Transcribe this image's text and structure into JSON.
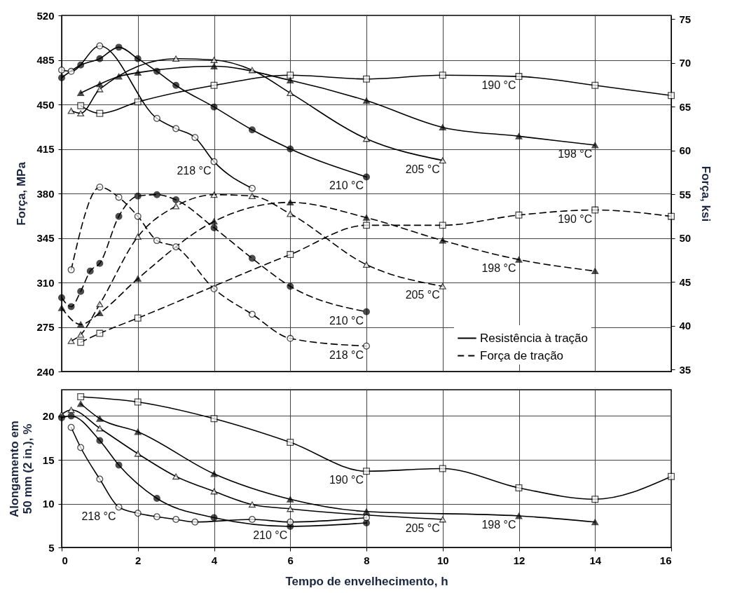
{
  "chart_data": [
    {
      "type": "line",
      "ylabel": "Força, MPa",
      "y2label": "Força, ksi",
      "xlim": [
        0,
        16
      ],
      "xticks": [
        0,
        2,
        4,
        6,
        8,
        10,
        12,
        14,
        16
      ],
      "ylim": [
        240,
        520
      ],
      "yticks": [
        240,
        275,
        310,
        345,
        380,
        415,
        450,
        485,
        520
      ],
      "y2lim": [
        34.8,
        75.4
      ],
      "y2ticks": [
        35,
        40,
        45,
        50,
        55,
        60,
        65,
        70,
        75
      ],
      "grid": true,
      "legend": "bottom right",
      "tick_labels": "y",
      "series": [
        {
          "name": "Resistência à tração",
          "line_style": "solid",
          "marker": "square",
          "color": "#000000",
          "x": [
            0.5,
            1,
            2,
            4,
            6,
            8,
            10,
            12,
            14,
            16
          ],
          "values": [
            449,
            443,
            452,
            465,
            473,
            470,
            473,
            472,
            465,
            457
          ],
          "colors": [
            "#ffffff",
            "#ffffff",
            "#ffffff",
            "#ffffff",
            "#ffffff",
            "#ffffff",
            "#ffffff",
            "#ffffff",
            "#ffffff",
            "#ffffff"
          ]
        },
        {
          "line_style": "solid",
          "marker": "triangle",
          "color": "#000000",
          "x": [
            0.5,
            1,
            1.5,
            2,
            4,
            6,
            8,
            10,
            12,
            14
          ],
          "values": [
            459,
            466,
            472,
            475,
            480,
            469,
            453,
            432,
            425,
            418
          ]
        },
        {
          "line_style": "solid",
          "marker": "triangle",
          "color": "#000000",
          "x": [
            0.25,
            0.5,
            1,
            3,
            4,
            5,
            6,
            8,
            10
          ],
          "values": [
            445,
            443,
            462,
            486,
            485,
            477,
            459,
            423,
            406
          ],
          "colors": [
            "#ffffff",
            "#ffffff",
            "#ffffff",
            "#ffffff",
            "#ffffff",
            "#ffffff",
            "#ffffff",
            "#ffffff",
            "#ffffff"
          ]
        },
        {
          "line_style": "solid",
          "marker": "circle",
          "color": "#000000",
          "x": [
            0,
            0.5,
            1,
            1.5,
            2,
            2.5,
            3,
            4,
            5,
            6,
            8
          ],
          "values": [
            471,
            481,
            486,
            495,
            486,
            476,
            465,
            448,
            430,
            415,
            393
          ]
        },
        {
          "line_style": "solid",
          "marker": "circle",
          "color": "#000000",
          "x": [
            0,
            0.25,
            1,
            2.5,
            3,
            3.5,
            4,
            5
          ],
          "values": [
            477,
            476,
            496,
            439,
            431,
            424,
            405,
            384
          ],
          "colors": [
            "#ffffff",
            "#ffffff",
            "#ffffff",
            "#ffffff",
            "#ffffff",
            "#ffffff",
            "#ffffff",
            "#ffffff"
          ]
        },
        {
          "name": "Força de tração",
          "line_style": "dashed",
          "marker": "square",
          "color": "#000000",
          "x": [
            0.5,
            1,
            2,
            6,
            8,
            10,
            12,
            14,
            16
          ],
          "values": [
            263,
            270,
            282,
            332,
            355,
            355,
            363,
            367,
            362
          ],
          "colors": [
            "#ffffff",
            "#ffffff",
            "#ffffff",
            "#ffffff",
            "#ffffff",
            "#ffffff",
            "#ffffff",
            "#ffffff",
            "#ffffff"
          ]
        },
        {
          "line_style": "dashed",
          "marker": "triangle",
          "color": "#000000",
          "x": [
            0,
            0.5,
            1,
            2,
            4,
            6,
            8,
            10,
            12,
            14
          ],
          "values": [
            290,
            277,
            286,
            313,
            358,
            373,
            361,
            343,
            328,
            319
          ]
        },
        {
          "line_style": "dashed",
          "marker": "triangle",
          "color": "#000000",
          "x": [
            0.25,
            0.5,
            1,
            2,
            3,
            4,
            5,
            6,
            8,
            10
          ],
          "values": [
            264,
            269,
            293,
            346,
            370,
            379,
            378,
            364,
            324,
            307
          ],
          "colors": [
            "#ffffff",
            "#ffffff",
            "#ffffff",
            "#ffffff",
            "#ffffff",
            "#ffffff",
            "#ffffff",
            "#ffffff",
            "#ffffff",
            "#ffffff"
          ]
        },
        {
          "line_style": "dashed",
          "marker": "circle",
          "color": "#000000",
          "x": [
            0,
            0.25,
            0.5,
            0.75,
            1,
            1.5,
            2,
            2.5,
            3,
            4,
            5,
            6,
            8
          ],
          "values": [
            298,
            291,
            303,
            319,
            325,
            362,
            378,
            379,
            375,
            353,
            329,
            307,
            287
          ]
        },
        {
          "line_style": "dashed",
          "marker": "circle",
          "color": "#000000",
          "x": [
            0.25,
            1,
            1.5,
            2,
            2.5,
            3,
            4,
            5,
            6,
            8
          ],
          "values": [
            320,
            385,
            377,
            362,
            343,
            338,
            305,
            285,
            266,
            260
          ],
          "colors": [
            "#ffffff",
            "#ffffff",
            "#ffffff",
            "#ffffff",
            "#ffffff",
            "#ffffff",
            "#ffffff",
            "#ffffff",
            "#ffffff",
            "#ffffff"
          ]
        }
      ],
      "annotations": [
        {
          "text": "190 °C",
          "x": 12,
          "y": 472
        },
        {
          "text": "198 °C",
          "x": 14,
          "y": 418
        },
        {
          "text": "205 °C",
          "x": 10,
          "y": 406
        },
        {
          "text": "210 °C",
          "x": 8,
          "y": 393
        },
        {
          "text": "218 °C",
          "x": 4,
          "y": 405
        },
        {
          "text": "190 °C",
          "x": 14,
          "y": 367
        },
        {
          "text": "198 °C",
          "x": 12,
          "y": 328
        },
        {
          "text": "205 °C",
          "x": 10,
          "y": 307
        },
        {
          "text": "210 °C",
          "x": 8,
          "y": 287
        },
        {
          "text": "218 °C",
          "x": 8,
          "y": 260
        }
      ]
    },
    {
      "type": "line",
      "ylabel": "Alongamento em\n50 mm (2 in.), %",
      "xlabel": "Tempo de envelhecimento, h",
      "xlim": [
        0,
        16
      ],
      "xticks": [
        0,
        2,
        4,
        6,
        8,
        10,
        12,
        14,
        16
      ],
      "ylim": [
        5,
        23
      ],
      "yticks": [
        5,
        10,
        15,
        20
      ],
      "grid": true,
      "series": [
        {
          "line_style": "solid",
          "marker": "square",
          "color": "#000000",
          "x": [
            0.5,
            2,
            4,
            6,
            8,
            10,
            12,
            14,
            16
          ],
          "values": [
            22.2,
            21.6,
            19.7,
            17.0,
            13.7,
            14.0,
            11.8,
            10.5,
            13.1
          ],
          "colors": [
            "#ffffff",
            "#ffffff",
            "#ffffff",
            "#ffffff",
            "#ffffff",
            "#ffffff",
            "#ffffff",
            "#ffffff",
            "#ffffff"
          ]
        },
        {
          "line_style": "solid",
          "marker": "triangle",
          "color": "#000000",
          "x": [
            0.5,
            1,
            2,
            4,
            6,
            8,
            12,
            14
          ],
          "values": [
            21.4,
            19.7,
            18.2,
            13.4,
            10.5,
            9.1,
            8.6,
            7.9
          ]
        },
        {
          "line_style": "solid",
          "marker": "triangle",
          "color": "#000000",
          "x": [
            0,
            0.25,
            1,
            2,
            3,
            4,
            5,
            6,
            10
          ],
          "values": [
            20.2,
            20.7,
            18.6,
            15.7,
            13.1,
            11.4,
            9.9,
            9.4,
            8.2
          ],
          "colors": [
            "#ffffff",
            "#ffffff",
            "#ffffff",
            "#ffffff",
            "#ffffff",
            "#ffffff",
            "#ffffff",
            "#ffffff",
            "#ffffff"
          ]
        },
        {
          "line_style": "solid",
          "marker": "circle",
          "color": "#000000",
          "x": [
            0,
            0.25,
            1,
            1.5,
            2.5,
            4,
            6,
            8
          ],
          "values": [
            19.8,
            20.0,
            17.2,
            14.4,
            10.6,
            8.4,
            7.4,
            7.8
          ]
        },
        {
          "line_style": "solid",
          "marker": "circle",
          "color": "#000000",
          "x": [
            0.25,
            0.5,
            1,
            1.5,
            2,
            2.5,
            3,
            3.5,
            5,
            6,
            8
          ],
          "values": [
            18.7,
            16.4,
            12.8,
            9.6,
            8.9,
            8.5,
            8.2,
            7.9,
            8.2,
            7.9,
            8.4
          ],
          "colors": [
            "#ffffff",
            "#ffffff",
            "#ffffff",
            "#ffffff",
            "#ffffff",
            "#ffffff",
            "#ffffff",
            "#ffffff",
            "#ffffff",
            "#ffffff",
            "#ffffff"
          ]
        }
      ],
      "annotations": [
        {
          "text": "205 °C",
          "x": 10,
          "y": 8.2
        },
        {
          "text": "190 °C",
          "x": 8,
          "y": 13.7
        },
        {
          "text": "198 °C",
          "x": 12,
          "y": 8.6
        },
        {
          "text": "210 °C",
          "x": 6,
          "y": 7.4
        },
        {
          "text": "218 °C",
          "x": 1.5,
          "y": 9.6
        }
      ]
    }
  ]
}
